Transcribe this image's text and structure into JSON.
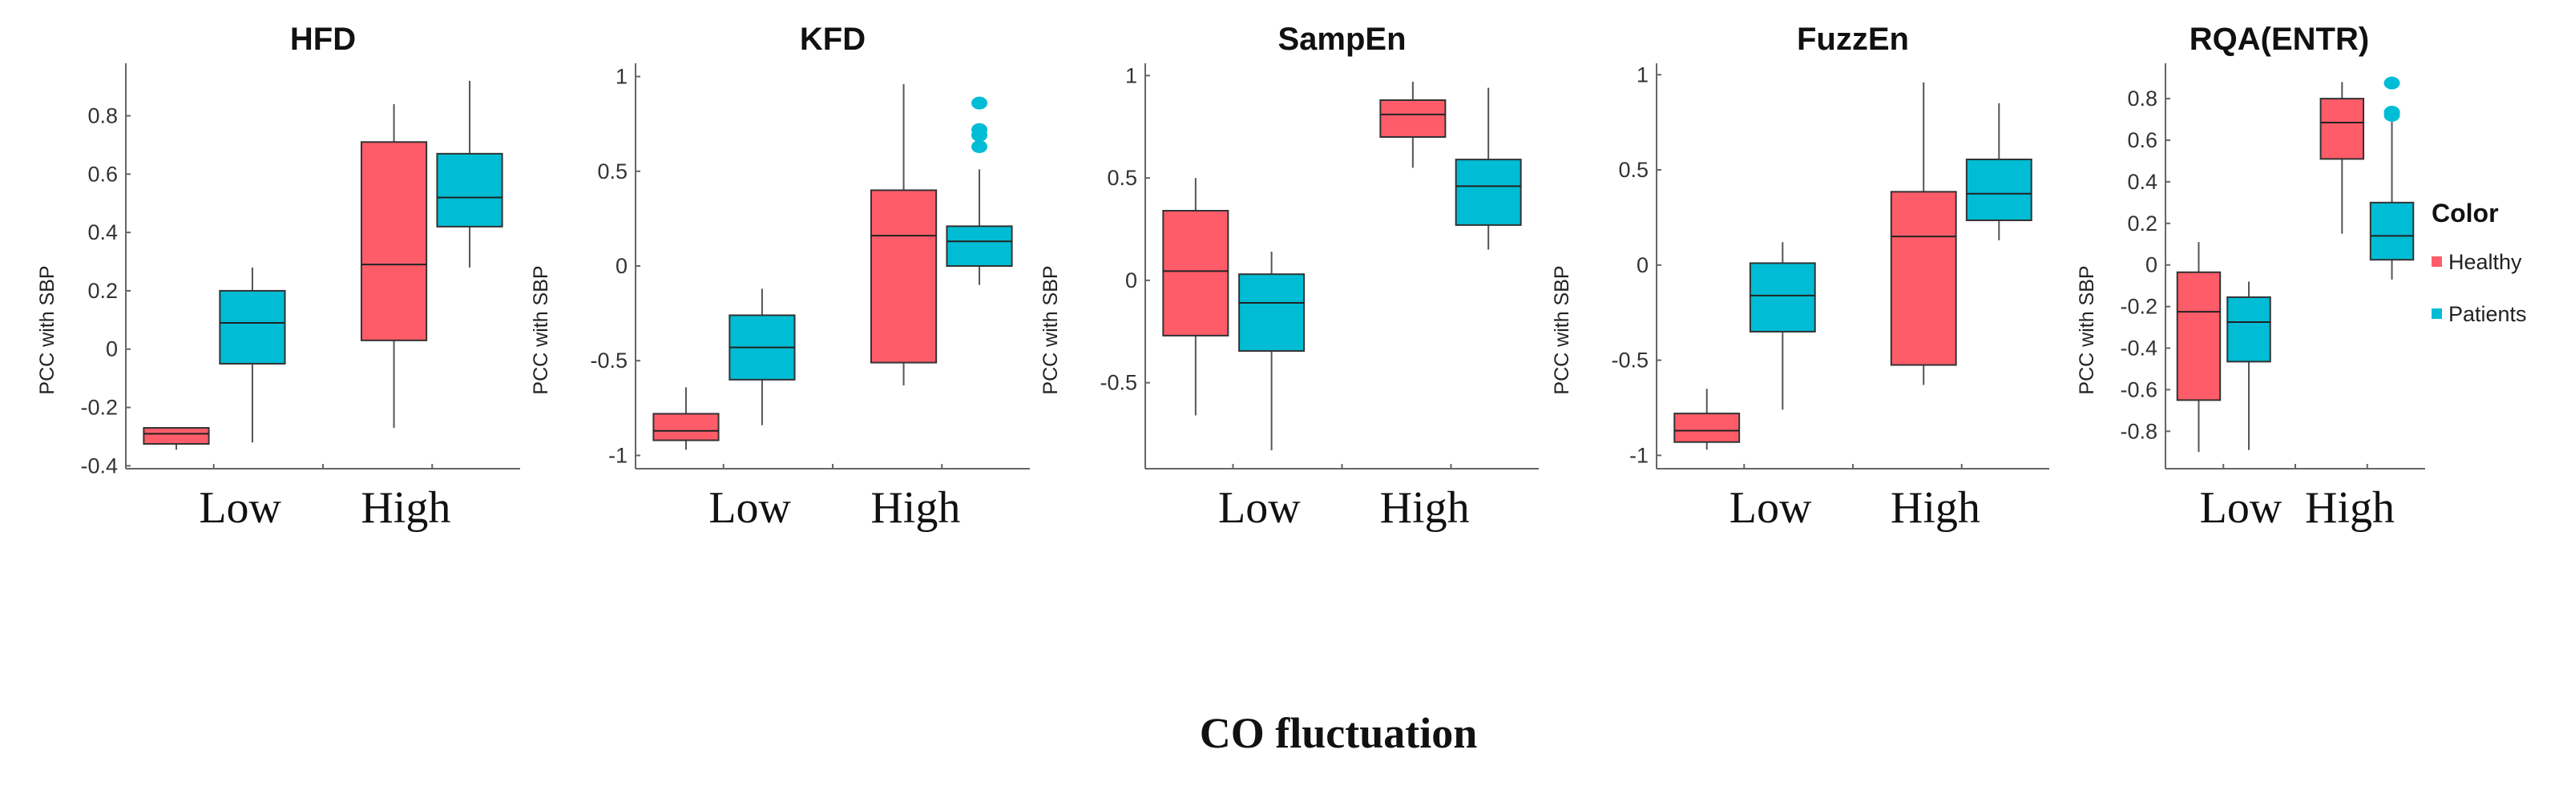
{
  "chart_data": {
    "type": "box",
    "xlabel": "CO fluctuation",
    "categories": [
      "Low",
      "High"
    ],
    "legend": {
      "title": "Color",
      "placement": "right",
      "entries": [
        {
          "name": "Healthy",
          "color": "#FF5C69"
        },
        {
          "name": "Patients",
          "color": "#00BCD4"
        }
      ]
    },
    "panels": [
      {
        "title": "HFD",
        "ylabel": "PCC with SBP",
        "ylim": [
          -0.41,
          0.98
        ],
        "yticks": [
          -0.4,
          -0.2,
          0,
          0.2,
          0.4,
          0.6,
          0.8
        ],
        "ytick_labels": [
          "-0.4",
          "-0.2",
          "0",
          "0.2",
          "0.4",
          "0.6",
          "0.8"
        ],
        "boxes": [
          {
            "category": "Low",
            "group": "Healthy",
            "whisker_low": -0.345,
            "q1": -0.325,
            "median": -0.29,
            "q3": -0.27,
            "whisker_high": -0.27,
            "outliers": []
          },
          {
            "category": "Low",
            "group": "Patients",
            "whisker_low": -0.32,
            "q1": -0.05,
            "median": 0.09,
            "q3": 0.2,
            "whisker_high": 0.28,
            "outliers": []
          },
          {
            "category": "High",
            "group": "Healthy",
            "whisker_low": -0.27,
            "q1": 0.03,
            "median": 0.29,
            "q3": 0.71,
            "whisker_high": 0.84,
            "outliers": []
          },
          {
            "category": "High",
            "group": "Patients",
            "whisker_low": 0.28,
            "q1": 0.42,
            "median": 0.52,
            "q3": 0.67,
            "whisker_high": 0.92,
            "outliers": []
          }
        ]
      },
      {
        "title": "KFD",
        "ylabel": "PCC with SBP",
        "ylim": [
          -1.07,
          1.07
        ],
        "yticks": [
          -1,
          -0.5,
          0,
          0.5,
          1
        ],
        "ytick_labels": [
          "-1",
          "-0.5",
          "0",
          "0.5",
          "1"
        ],
        "boxes": [
          {
            "category": "Low",
            "group": "Healthy",
            "whisker_low": -0.97,
            "q1": -0.92,
            "median": -0.87,
            "q3": -0.78,
            "whisker_high": -0.64,
            "outliers": []
          },
          {
            "category": "Low",
            "group": "Patients",
            "whisker_low": -0.84,
            "q1": -0.6,
            "median": -0.43,
            "q3": -0.26,
            "whisker_high": -0.12,
            "outliers": []
          },
          {
            "category": "High",
            "group": "Healthy",
            "whisker_low": -0.63,
            "q1": -0.51,
            "median": 0.16,
            "q3": 0.4,
            "whisker_high": 0.96,
            "outliers": []
          },
          {
            "category": "High",
            "group": "Patients",
            "whisker_low": -0.1,
            "q1": 0.0,
            "median": 0.13,
            "q3": 0.21,
            "whisker_high": 0.51,
            "outliers": [
              0.86,
              0.72,
              0.69,
              0.63
            ]
          }
        ]
      },
      {
        "title": "SampEn",
        "ylabel": "PCC with SBP",
        "ylim": [
          -0.92,
          1.06
        ],
        "yticks": [
          -0.5,
          0,
          0.5,
          1
        ],
        "ytick_labels": [
          "-0.5",
          "0",
          "0.5",
          "1"
        ],
        "boxes": [
          {
            "category": "Low",
            "group": "Healthy",
            "whisker_low": -0.66,
            "q1": -0.27,
            "median": 0.045,
            "q3": 0.34,
            "whisker_high": 0.5,
            "outliers": []
          },
          {
            "category": "Low",
            "group": "Patients",
            "whisker_low": -0.83,
            "q1": -0.345,
            "median": -0.11,
            "q3": 0.03,
            "whisker_high": 0.14,
            "outliers": []
          },
          {
            "category": "High",
            "group": "Healthy",
            "whisker_low": 0.55,
            "q1": 0.7,
            "median": 0.81,
            "q3": 0.88,
            "whisker_high": 0.97,
            "outliers": []
          },
          {
            "category": "High",
            "group": "Patients",
            "whisker_low": 0.15,
            "q1": 0.27,
            "median": 0.46,
            "q3": 0.59,
            "whisker_high": 0.94,
            "outliers": []
          }
        ]
      },
      {
        "title": "FuzzEn",
        "ylabel": "PCC with SBP",
        "ylim": [
          -1.07,
          1.06
        ],
        "yticks": [
          -1,
          -0.5,
          0,
          0.5,
          1
        ],
        "ytick_labels": [
          "-1",
          "-0.5",
          "0",
          "0.5",
          "1"
        ],
        "boxes": [
          {
            "category": "Low",
            "group": "Healthy",
            "whisker_low": -0.97,
            "q1": -0.93,
            "median": -0.87,
            "q3": -0.78,
            "whisker_high": -0.65,
            "outliers": []
          },
          {
            "category": "Low",
            "group": "Patients",
            "whisker_low": -0.76,
            "q1": -0.35,
            "median": -0.16,
            "q3": 0.01,
            "whisker_high": 0.12,
            "outliers": []
          },
          {
            "category": "High",
            "group": "Healthy",
            "whisker_low": -0.63,
            "q1": -0.525,
            "median": 0.15,
            "q3": 0.385,
            "whisker_high": 0.96,
            "outliers": []
          },
          {
            "category": "High",
            "group": "Patients",
            "whisker_low": 0.13,
            "q1": 0.235,
            "median": 0.375,
            "q3": 0.555,
            "whisker_high": 0.85,
            "outliers": []
          }
        ]
      },
      {
        "title": "RQA(ENTR)",
        "ylabel": "PCC with SBP",
        "ylim": [
          -0.98,
          0.97
        ],
        "yticks": [
          -0.8,
          -0.6,
          -0.4,
          -0.2,
          0,
          0.2,
          0.4,
          0.6,
          0.8
        ],
        "ytick_labels": [
          "-0.8",
          "-0.6",
          "-0.4",
          "-0.2",
          "0",
          "0.2",
          "0.4",
          "0.6",
          "0.8"
        ],
        "boxes": [
          {
            "category": "Low",
            "group": "Healthy",
            "whisker_low": -0.9,
            "q1": -0.65,
            "median": -0.225,
            "q3": -0.035,
            "whisker_high": 0.11,
            "outliers": []
          },
          {
            "category": "Low",
            "group": "Patients",
            "whisker_low": -0.89,
            "q1": -0.465,
            "median": -0.275,
            "q3": -0.155,
            "whisker_high": -0.08,
            "outliers": []
          },
          {
            "category": "High",
            "group": "Healthy",
            "whisker_low": 0.15,
            "q1": 0.51,
            "median": 0.685,
            "q3": 0.8,
            "whisker_high": 0.88,
            "outliers": []
          },
          {
            "category": "High",
            "group": "Patients",
            "whisker_low": -0.07,
            "q1": 0.025,
            "median": 0.14,
            "q3": 0.3,
            "whisker_high": 0.69,
            "outliers": [
              0.875,
              0.735,
              0.72
            ]
          }
        ]
      }
    ]
  }
}
